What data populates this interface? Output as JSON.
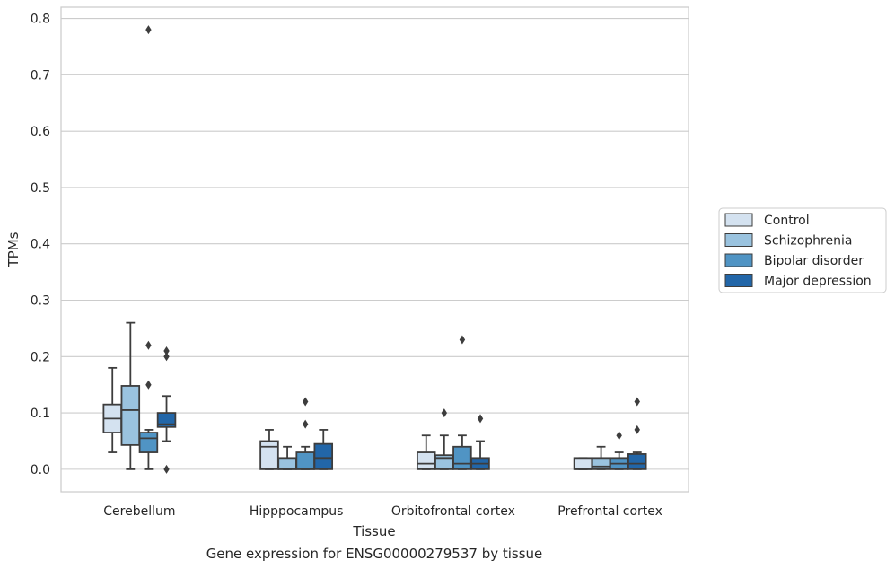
{
  "chart_data": {
    "type": "box",
    "xlabel": "Tissue",
    "ylabel": "TPMs",
    "caption": "Gene expression for ENSG00000279537 by tissue",
    "ylim": [
      -0.04,
      0.82
    ],
    "yticks": [
      "0.0",
      "0.1",
      "0.2",
      "0.3",
      "0.4",
      "0.5",
      "0.6",
      "0.7",
      "0.8"
    ],
    "grid": "horizontal",
    "legend_position": "right",
    "categories": [
      "Cerebellum",
      "Hipppocampus",
      "Orbitofrontal cortex",
      "Prefrontal cortex"
    ],
    "series": [
      {
        "name": "Control",
        "color": "#d4e2f0",
        "boxes": [
          {
            "q1": 0.065,
            "median": 0.09,
            "q3": 0.115,
            "whisker_low": 0.03,
            "whisker_high": 0.18,
            "outliers": []
          },
          {
            "q1": 0.0,
            "median": 0.04,
            "q3": 0.05,
            "whisker_low": 0.0,
            "whisker_high": 0.07,
            "outliers": []
          },
          {
            "q1": 0.0,
            "median": 0.01,
            "q3": 0.03,
            "whisker_low": 0.0,
            "whisker_high": 0.06,
            "outliers": []
          },
          {
            "q1": 0.0,
            "median": 0.0,
            "q3": 0.02,
            "whisker_low": 0.0,
            "whisker_high": 0.02,
            "outliers": []
          }
        ]
      },
      {
        "name": "Schizophrenia",
        "color": "#9ac3df",
        "boxes": [
          {
            "q1": 0.043,
            "median": 0.105,
            "q3": 0.148,
            "whisker_low": 0.0,
            "whisker_high": 0.26,
            "outliers": []
          },
          {
            "q1": 0.0,
            "median": 0.0,
            "q3": 0.02,
            "whisker_low": 0.0,
            "whisker_high": 0.04,
            "outliers": []
          },
          {
            "q1": 0.0,
            "median": 0.02,
            "q3": 0.025,
            "whisker_low": 0.0,
            "whisker_high": 0.06,
            "outliers": [
              0.1
            ]
          },
          {
            "q1": 0.0,
            "median": 0.005,
            "q3": 0.02,
            "whisker_low": 0.0,
            "whisker_high": 0.04,
            "outliers": []
          }
        ]
      },
      {
        "name": "Bipolar disorder",
        "color": "#5094c4",
        "boxes": [
          {
            "q1": 0.03,
            "median": 0.055,
            "q3": 0.065,
            "whisker_low": 0.0,
            "whisker_high": 0.07,
            "outliers": [
              0.15,
              0.22,
              0.78
            ]
          },
          {
            "q1": 0.0,
            "median": 0.0,
            "q3": 0.03,
            "whisker_low": 0.0,
            "whisker_high": 0.04,
            "outliers": [
              0.08,
              0.12
            ]
          },
          {
            "q1": 0.0,
            "median": 0.01,
            "q3": 0.04,
            "whisker_low": 0.0,
            "whisker_high": 0.06,
            "outliers": [
              0.23
            ]
          },
          {
            "q1": 0.0,
            "median": 0.01,
            "q3": 0.02,
            "whisker_low": 0.0,
            "whisker_high": 0.03,
            "outliers": [
              0.06
            ]
          }
        ]
      },
      {
        "name": "Major depression",
        "color": "#2266a8",
        "boxes": [
          {
            "q1": 0.075,
            "median": 0.08,
            "q3": 0.1,
            "whisker_low": 0.05,
            "whisker_high": 0.13,
            "outliers": [
              0.0,
              0.2,
              0.21
            ]
          },
          {
            "q1": 0.0,
            "median": 0.02,
            "q3": 0.045,
            "whisker_low": 0.0,
            "whisker_high": 0.07,
            "outliers": []
          },
          {
            "q1": 0.0,
            "median": 0.01,
            "q3": 0.02,
            "whisker_low": 0.0,
            "whisker_high": 0.05,
            "outliers": [
              0.09
            ]
          },
          {
            "q1": 0.0,
            "median": 0.01,
            "q3": 0.027,
            "whisker_low": 0.0,
            "whisker_high": 0.03,
            "outliers": [
              0.07,
              0.12
            ]
          }
        ]
      }
    ]
  }
}
